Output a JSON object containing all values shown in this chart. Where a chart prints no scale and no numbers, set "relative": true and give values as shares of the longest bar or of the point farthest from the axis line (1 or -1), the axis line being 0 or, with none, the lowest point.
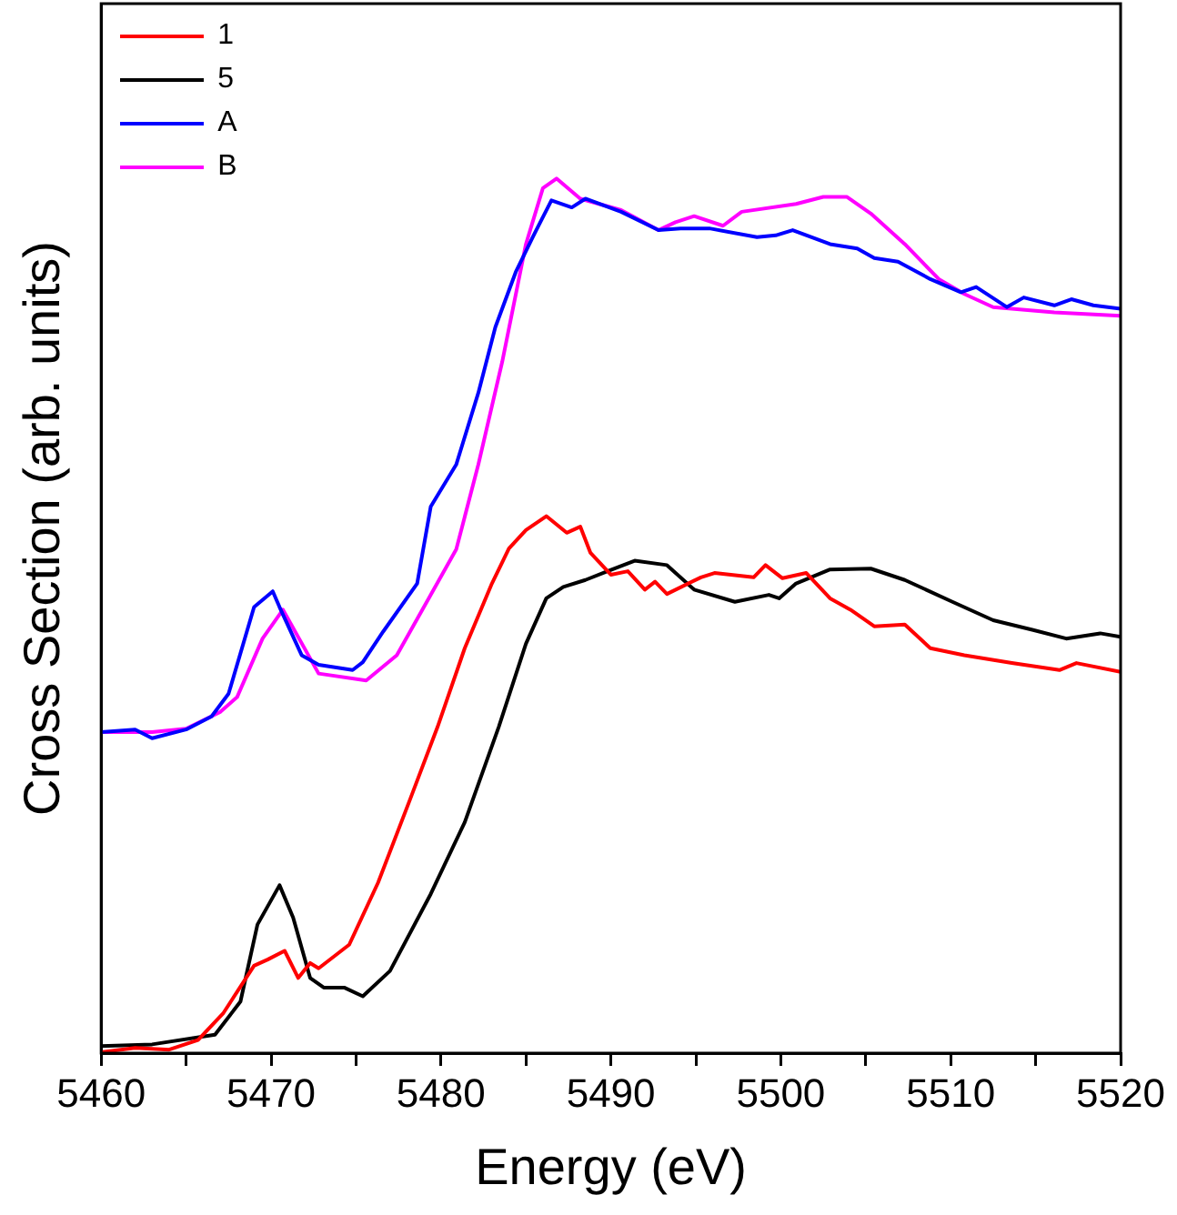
{
  "chart_data": {
    "type": "line",
    "relative": true,
    "xlabel": "Energy (eV)",
    "ylabel": "Cross Section (arb. units)",
    "xlim": [
      5460,
      5520
    ],
    "xticks": [
      5460,
      {
        "value": 5465,
        "label": null
      },
      5470,
      {
        "value": 5475,
        "label": null
      },
      5480,
      {
        "value": 5485,
        "label": null
      },
      5490,
      {
        "value": 5495,
        "label": null
      },
      5500,
      {
        "value": 5505,
        "label": null
      },
      5510,
      {
        "value": 5515,
        "label": null
      },
      5520
    ],
    "grid": false,
    "legend": "top left",
    "marker": "none",
    "line_style": "solid",
    "series": [
      {
        "name": "1",
        "color": "#ff0000",
        "x": [
          5460,
          5462,
          5464,
          5465.7,
          5467.2,
          5469,
          5469.8,
          5470.8,
          5471.6,
          5472.3,
          5472.8,
          5474.6,
          5476.3,
          5478.2,
          5479.8,
          5481.4,
          5483,
          5484,
          5485,
          5486.2,
          5487.4,
          5488.2,
          5488.8,
          5490,
          5491,
          5492,
          5492.6,
          5493.3,
          5495.3,
          5496.1,
          5498.4,
          5499.1,
          5500.1,
          5501.5,
          5502.9,
          5504.1,
          5505.5,
          5507.3,
          5508.8,
          5510.8,
          5513.6,
          5516.4,
          5517.4,
          5520
        ],
        "values": [
          0.001,
          0.006,
          0.004,
          0.015,
          0.046,
          0.1,
          0.107,
          0.117,
          0.086,
          0.103,
          0.097,
          0.124,
          0.195,
          0.291,
          0.373,
          0.463,
          0.537,
          0.577,
          0.598,
          0.614,
          0.595,
          0.602,
          0.572,
          0.547,
          0.551,
          0.53,
          0.539,
          0.525,
          0.544,
          0.549,
          0.544,
          0.558,
          0.543,
          0.549,
          0.52,
          0.507,
          0.488,
          0.49,
          0.463,
          0.455,
          0.446,
          0.438,
          0.446,
          0.436
        ]
      },
      {
        "name": "5",
        "color": "#000000",
        "x": [
          5460,
          5463,
          5466.7,
          5468.2,
          5469.2,
          5470.5,
          5471.3,
          5472.3,
          5473.1,
          5474.3,
          5475.4,
          5477,
          5479.4,
          5481.4,
          5483.4,
          5485,
          5486.2,
          5487.2,
          5488.5,
          5489.8,
          5491.4,
          5493.3,
          5494.9,
          5497.3,
          5499.3,
          5499.9,
          5500.9,
          5502.9,
          5505.3,
          5507.3,
          5510.1,
          5512.5,
          5514.8,
          5516.8,
          5518.8,
          5520
        ],
        "values": [
          0.008,
          0.01,
          0.021,
          0.059,
          0.147,
          0.192,
          0.155,
          0.086,
          0.075,
          0.075,
          0.065,
          0.094,
          0.182,
          0.264,
          0.373,
          0.468,
          0.52,
          0.533,
          0.541,
          0.551,
          0.563,
          0.558,
          0.53,
          0.516,
          0.524,
          0.52,
          0.537,
          0.553,
          0.554,
          0.541,
          0.516,
          0.495,
          0.484,
          0.474,
          0.48,
          0.476
        ]
      },
      {
        "name": "A",
        "color": "#0000ff",
        "x": [
          5460,
          5462,
          5463,
          5465,
          5466.5,
          5467.5,
          5469,
          5470.1,
          5470.5,
          5471.8,
          5472.8,
          5474.8,
          5475.4,
          5476.6,
          5478.6,
          5479.4,
          5480.9,
          5482.2,
          5483.2,
          5484.4,
          5485.4,
          5486.5,
          5487.7,
          5488.5,
          5490.6,
          5492.8,
          5494.1,
          5495.8,
          5498.6,
          5499.7,
          5500.7,
          5502.9,
          5504.5,
          5505.5,
          5506.9,
          5508.8,
          5510.6,
          5511.5,
          5513.3,
          5514.3,
          5516.1,
          5517.1,
          5518.4,
          5520
        ],
        "values": [
          0.367,
          0.37,
          0.36,
          0.37,
          0.385,
          0.411,
          0.51,
          0.528,
          0.51,
          0.455,
          0.444,
          0.438,
          0.447,
          0.482,
          0.537,
          0.625,
          0.673,
          0.755,
          0.83,
          0.893,
          0.933,
          0.975,
          0.967,
          0.977,
          0.962,
          0.941,
          0.943,
          0.943,
          0.933,
          0.935,
          0.941,
          0.925,
          0.92,
          0.909,
          0.905,
          0.885,
          0.87,
          0.876,
          0.853,
          0.864,
          0.855,
          0.862,
          0.855,
          0.851
        ]
      },
      {
        "name": "B",
        "color": "#ff00ff",
        "x": [
          5460,
          5463,
          5465,
          5467,
          5468,
          5469.5,
          5470.7,
          5472.8,
          5475.6,
          5477.4,
          5479.4,
          5480.9,
          5482.2,
          5483.6,
          5485,
          5486,
          5486.8,
          5488.2,
          5490.6,
          5492.8,
          5493.8,
          5494.9,
          5496.6,
          5497.7,
          5500.9,
          5502.5,
          5503.9,
          5505.3,
          5507.3,
          5509.3,
          5510.8,
          5512.5,
          5516.1,
          5520
        ],
        "values": [
          0.367,
          0.367,
          0.371,
          0.39,
          0.407,
          0.474,
          0.507,
          0.434,
          0.426,
          0.455,
          0.524,
          0.576,
          0.673,
          0.79,
          0.925,
          0.989,
          1.0,
          0.977,
          0.964,
          0.941,
          0.95,
          0.957,
          0.946,
          0.962,
          0.971,
          0.979,
          0.979,
          0.96,
          0.925,
          0.885,
          0.868,
          0.853,
          0.847,
          0.843
        ]
      }
    ]
  }
}
